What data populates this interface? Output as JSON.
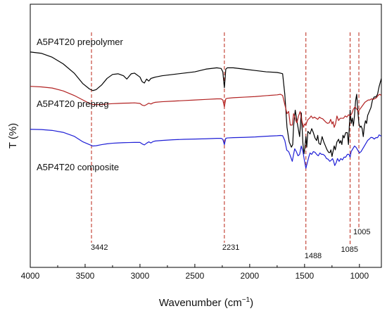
{
  "chart_data": {
    "type": "line",
    "title": "",
    "xlabel": "Wavenumber (cm",
    "xlabel_sup": "−1",
    "xlabel_close": ")",
    "ylabel": "T (%)",
    "xlim": [
      4000,
      800
    ],
    "x_reversed": true,
    "x_ticks": [
      "4000",
      "3500",
      "3000",
      "2500",
      "2000",
      "1500",
      "1000"
    ],
    "y_ticks_shown": false,
    "grid": false,
    "legend": "none",
    "series": [
      {
        "name": "A5P4T20 prepolymer",
        "color": "#000000",
        "x": [
          4000,
          3900,
          3800,
          3700,
          3600,
          3520,
          3460,
          3430,
          3400,
          3350,
          3300,
          3250,
          3200,
          3150,
          3120,
          3080,
          3050,
          3000,
          2980,
          2960,
          2940,
          2920,
          2900,
          2880,
          2860,
          2800,
          2700,
          2600,
          2500,
          2400,
          2300,
          2260,
          2245,
          2238,
          2231,
          2224,
          2218,
          2205,
          2150,
          2050,
          1950,
          1850,
          1750,
          1720,
          1700,
          1680,
          1660,
          1640,
          1620,
          1608,
          1600,
          1585,
          1570,
          1545,
          1530,
          1515,
          1505,
          1497,
          1488,
          1480,
          1470,
          1450,
          1435,
          1420,
          1405,
          1390,
          1380,
          1370,
          1355,
          1340,
          1325,
          1310,
          1295,
          1280,
          1268,
          1260,
          1250,
          1240,
          1230,
          1220,
          1205,
          1190,
          1180,
          1170,
          1160,
          1150,
          1140,
          1125,
          1110,
          1100,
          1085,
          1075,
          1065,
          1055,
          1045,
          1035,
          1025,
          1015,
          1005,
          995,
          985,
          975,
          965,
          955,
          945,
          935,
          925,
          915,
          905,
          895,
          880,
          865,
          850,
          835,
          820,
          800
        ],
        "y": [
          0.82,
          0.81,
          0.78,
          0.73,
          0.66,
          0.58,
          0.54,
          0.528,
          0.535,
          0.57,
          0.62,
          0.65,
          0.655,
          0.64,
          0.615,
          0.655,
          0.66,
          0.63,
          0.595,
          0.585,
          0.615,
          0.6,
          0.62,
          0.625,
          0.63,
          0.64,
          0.65,
          0.66,
          0.67,
          0.69,
          0.7,
          0.695,
          0.67,
          0.61,
          0.55,
          0.62,
          0.69,
          0.7,
          0.7,
          0.69,
          0.68,
          0.67,
          0.665,
          0.66,
          0.655,
          0.5,
          0.25,
          0.14,
          0.1,
          0.12,
          0.26,
          0.38,
          0.3,
          0.18,
          0.36,
          0.13,
          0.05,
          0.1,
          0.18,
          0.1,
          0.22,
          0.2,
          0.24,
          0.21,
          0.17,
          0.15,
          0.19,
          0.13,
          0.12,
          0.18,
          0.14,
          0.11,
          0.08,
          0.06,
          0.06,
          0.08,
          0.03,
          0.07,
          0.11,
          0.08,
          0.14,
          0.16,
          0.13,
          0.15,
          0.12,
          0.19,
          0.17,
          0.21,
          0.21,
          0.12,
          0.38,
          0.28,
          0.32,
          0.26,
          0.34,
          0.45,
          0.5,
          0.38,
          0.28,
          0.25,
          0.26,
          0.24,
          0.18,
          0.26,
          0.3,
          0.28,
          0.34,
          0.36,
          0.38,
          0.4,
          0.46,
          0.48,
          0.48,
          0.5,
          0.56,
          0.62
        ]
      },
      {
        "name": "A5P4T20 prepreg",
        "color": "#b22222",
        "x": [
          4000,
          3900,
          3800,
          3700,
          3600,
          3520,
          3460,
          3430,
          3400,
          3350,
          3300,
          3250,
          3200,
          3150,
          3100,
          3050,
          3000,
          2980,
          2960,
          2940,
          2920,
          2900,
          2880,
          2860,
          2800,
          2700,
          2600,
          2500,
          2400,
          2300,
          2260,
          2245,
          2238,
          2231,
          2224,
          2218,
          2205,
          2150,
          2050,
          1950,
          1850,
          1750,
          1720,
          1700,
          1680,
          1660,
          1645,
          1630,
          1612,
          1600,
          1592,
          1580,
          1570,
          1555,
          1540,
          1525,
          1510,
          1500,
          1488,
          1478,
          1468,
          1455,
          1440,
          1425,
          1410,
          1395,
          1380,
          1365,
          1350,
          1335,
          1320,
          1305,
          1290,
          1275,
          1262,
          1250,
          1240,
          1230,
          1218,
          1205,
          1190,
          1175,
          1160,
          1145,
          1130,
          1115,
          1100,
          1085,
          1070,
          1055,
          1040,
          1025,
          1010,
          995,
          980,
          965,
          950,
          935,
          920,
          905,
          890,
          875,
          860,
          845,
          830,
          815,
          800
        ],
        "y": [
          0.86,
          0.855,
          0.845,
          0.82,
          0.78,
          0.74,
          0.71,
          0.7,
          0.7,
          0.7,
          0.705,
          0.708,
          0.71,
          0.712,
          0.713,
          0.715,
          0.71,
          0.695,
          0.69,
          0.7,
          0.712,
          0.705,
          0.715,
          0.72,
          0.725,
          0.73,
          0.735,
          0.74,
          0.745,
          0.75,
          0.75,
          0.74,
          0.71,
          0.68,
          0.72,
          0.75,
          0.755,
          0.76,
          0.765,
          0.77,
          0.778,
          0.785,
          0.79,
          0.78,
          0.7,
          0.62,
          0.64,
          0.52,
          0.52,
          0.62,
          0.6,
          0.56,
          0.54,
          0.6,
          0.64,
          0.56,
          0.5,
          0.53,
          0.52,
          0.55,
          0.57,
          0.58,
          0.6,
          0.58,
          0.59,
          0.58,
          0.57,
          0.59,
          0.58,
          0.575,
          0.56,
          0.545,
          0.535,
          0.54,
          0.57,
          0.53,
          0.55,
          0.5,
          0.53,
          0.6,
          0.56,
          0.58,
          0.58,
          0.58,
          0.6,
          0.59,
          0.61,
          0.6,
          0.62,
          0.66,
          0.68,
          0.66,
          0.64,
          0.66,
          0.68,
          0.7,
          0.72,
          0.73,
          0.74,
          0.74,
          0.75,
          0.745,
          0.752,
          0.76,
          0.78,
          0.79,
          0.78
        ]
      },
      {
        "name": "A5P4T20 composite",
        "color": "#1f1fd6",
        "x": [
          4000,
          3900,
          3800,
          3700,
          3600,
          3520,
          3460,
          3430,
          3400,
          3350,
          3300,
          3250,
          3200,
          3150,
          3100,
          3050,
          3000,
          2980,
          2960,
          2940,
          2920,
          2900,
          2880,
          2860,
          2800,
          2700,
          2600,
          2500,
          2400,
          2300,
          2260,
          2245,
          2238,
          2231,
          2224,
          2218,
          2205,
          2150,
          2050,
          1950,
          1850,
          1750,
          1720,
          1700,
          1680,
          1662,
          1645,
          1630,
          1612,
          1600,
          1590,
          1575,
          1560,
          1545,
          1530,
          1515,
          1500,
          1488,
          1475,
          1462,
          1450,
          1435,
          1420,
          1405,
          1390,
          1375,
          1360,
          1345,
          1330,
          1315,
          1300,
          1285,
          1270,
          1255,
          1245,
          1235,
          1225,
          1212,
          1200,
          1185,
          1170,
          1155,
          1140,
          1125,
          1110,
          1095,
          1085,
          1075,
          1060,
          1045,
          1030,
          1015,
          1000,
          985,
          970,
          955,
          940,
          925,
          910,
          895,
          880,
          865,
          850,
          835,
          820,
          800
        ],
        "y": [
          0.88,
          0.878,
          0.872,
          0.858,
          0.83,
          0.79,
          0.77,
          0.76,
          0.762,
          0.77,
          0.776,
          0.78,
          0.782,
          0.784,
          0.785,
          0.786,
          0.786,
          0.775,
          0.768,
          0.78,
          0.79,
          0.782,
          0.792,
          0.796,
          0.8,
          0.805,
          0.808,
          0.81,
          0.812,
          0.815,
          0.815,
          0.808,
          0.79,
          0.77,
          0.795,
          0.815,
          0.818,
          0.82,
          0.822,
          0.825,
          0.83,
          0.834,
          0.836,
          0.834,
          0.8,
          0.73,
          0.72,
          0.69,
          0.65,
          0.7,
          0.74,
          0.72,
          0.69,
          0.7,
          0.76,
          0.72,
          0.65,
          0.6,
          0.64,
          0.68,
          0.71,
          0.7,
          0.72,
          0.715,
          0.7,
          0.69,
          0.71,
          0.7,
          0.7,
          0.69,
          0.67,
          0.665,
          0.65,
          0.66,
          0.67,
          0.65,
          0.62,
          0.64,
          0.67,
          0.65,
          0.67,
          0.66,
          0.68,
          0.68,
          0.7,
          0.7,
          0.68,
          0.72,
          0.74,
          0.76,
          0.75,
          0.73,
          0.71,
          0.72,
          0.74,
          0.76,
          0.78,
          0.8,
          0.81,
          0.822,
          0.82,
          0.81,
          0.82,
          0.82,
          0.84,
          0.83
        ]
      }
    ],
    "series_labels": [
      "A5P4T20 prepolymer",
      "A5P4T20 prepreg",
      "A5P4T20 composite"
    ],
    "reference_lines": {
      "color": "#c0392b",
      "style": "dashed",
      "positions": [
        3442,
        2231,
        1488,
        1085,
        1005
      ],
      "labels": [
        "3442",
        "2231",
        "1488",
        "1085",
        "1005"
      ]
    }
  }
}
